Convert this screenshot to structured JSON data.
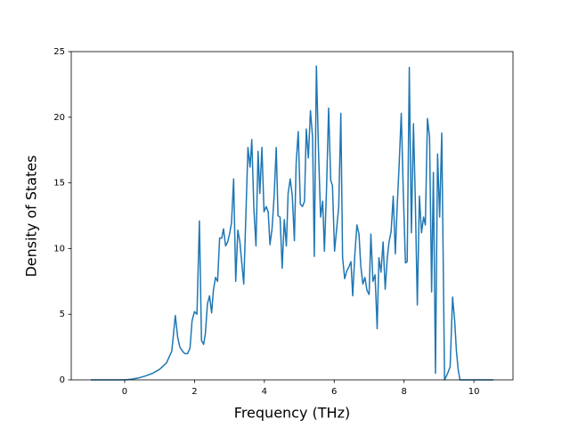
{
  "chart_data": {
    "type": "line",
    "xlabel": "Frequency (THz)",
    "ylabel": "Density of States",
    "color": "#1f77b4",
    "grid": false,
    "xlim": [
      -1.53,
      11.12
    ],
    "ylim": [
      0,
      25
    ],
    "xticks": [
      0,
      2,
      4,
      6,
      8,
      10
    ],
    "yticks": [
      0,
      5,
      10,
      15,
      20,
      25
    ],
    "x": [
      -0.97,
      0,
      0.2,
      0.4,
      0.6,
      0.8,
      1.0,
      1.2,
      1.35,
      1.45,
      1.52,
      1.58,
      1.65,
      1.72,
      1.8,
      1.87,
      1.93,
      2.0,
      2.07,
      2.14,
      2.2,
      2.26,
      2.31,
      2.37,
      2.43,
      2.49,
      2.54,
      2.6,
      2.66,
      2.72,
      2.78,
      2.83,
      2.89,
      2.95,
      3.01,
      3.06,
      3.12,
      3.18,
      3.24,
      3.3,
      3.35,
      3.41,
      3.47,
      3.53,
      3.59,
      3.64,
      3.7,
      3.76,
      3.82,
      3.87,
      3.93,
      3.99,
      4.05,
      4.11,
      4.16,
      4.22,
      4.28,
      4.34,
      4.39,
      4.45,
      4.51,
      4.57,
      4.63,
      4.68,
      4.74,
      4.8,
      4.86,
      4.91,
      4.97,
      5.03,
      5.09,
      5.15,
      5.2,
      5.26,
      5.32,
      5.38,
      5.43,
      5.49,
      5.55,
      5.61,
      5.67,
      5.72,
      5.78,
      5.84,
      5.9,
      5.95,
      6.01,
      6.07,
      6.13,
      6.19,
      6.24,
      6.3,
      6.36,
      6.42,
      6.48,
      6.53,
      6.59,
      6.65,
      6.71,
      6.76,
      6.82,
      6.88,
      6.94,
      7.0,
      7.05,
      7.11,
      7.17,
      7.23,
      7.28,
      7.34,
      7.4,
      7.46,
      7.52,
      7.57,
      7.63,
      7.69,
      7.75,
      7.8,
      7.86,
      7.92,
      7.98,
      8.04,
      8.09,
      8.15,
      8.21,
      8.27,
      8.32,
      8.38,
      8.44,
      8.5,
      8.56,
      8.61,
      8.67,
      8.73,
      8.79,
      8.84,
      8.9,
      8.96,
      9.02,
      9.08,
      9.16,
      9.25,
      9.32,
      9.39,
      9.45,
      9.5,
      9.55,
      9.6,
      10.56
    ],
    "values": [
      0,
      0,
      0.05,
      0.15,
      0.3,
      0.5,
      0.8,
      1.3,
      2.2,
      4.9,
      3.2,
      2.5,
      2.2,
      2.0,
      2.0,
      2.4,
      4.5,
      5.2,
      5.0,
      12.1,
      3.0,
      2.7,
      3.5,
      5.8,
      6.4,
      5.1,
      6.8,
      7.8,
      7.5,
      10.8,
      10.8,
      11.5,
      10.2,
      10.5,
      11.2,
      12.0,
      15.3,
      7.5,
      11.4,
      10.5,
      9.0,
      7.3,
      12.5,
      17.7,
      16.2,
      18.3,
      13.0,
      10.2,
      17.4,
      14.2,
      17.7,
      12.8,
      13.2,
      12.8,
      10.3,
      11.5,
      14.0,
      17.7,
      12.5,
      12.4,
      8.5,
      12.2,
      10.2,
      14.2,
      15.3,
      14.0,
      10.6,
      16.5,
      18.9,
      13.4,
      13.2,
      13.6,
      19.1,
      16.9,
      20.5,
      18.5,
      9.4,
      23.9,
      17.5,
      12.4,
      13.6,
      9.8,
      14.5,
      20.7,
      15.2,
      14.8,
      9.8,
      11.5,
      13.2,
      20.3,
      9.3,
      7.7,
      8.3,
      8.6,
      9.0,
      6.4,
      9.5,
      11.8,
      11.1,
      8.7,
      7.3,
      7.8,
      6.8,
      6.5,
      11.1,
      7.5,
      8.0,
      3.9,
      9.3,
      8.2,
      10.5,
      6.9,
      9.3,
      10.5,
      11.3,
      14.0,
      9.6,
      13.0,
      16.4,
      20.3,
      14.2,
      8.9,
      9.0,
      23.8,
      11.2,
      19.5,
      14.0,
      5.7,
      14.0,
      11.2,
      12.4,
      11.8,
      19.9,
      18.5,
      6.7,
      15.8,
      0.5,
      17.2,
      12.4,
      18.8,
      0,
      0.5,
      1.0,
      6.3,
      4.5,
      2.2,
      0.8,
      0,
      0
    ]
  }
}
